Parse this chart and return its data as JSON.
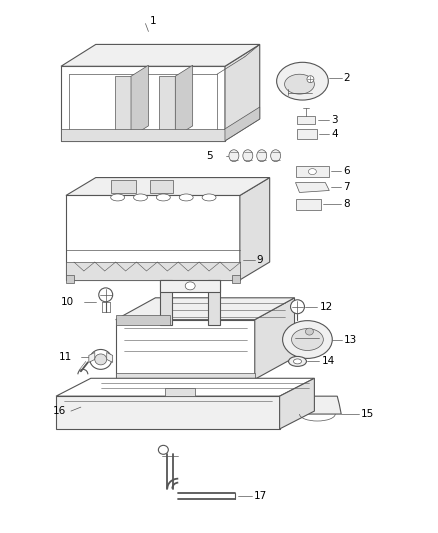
{
  "background_color": "#ffffff",
  "line_color": "#555555",
  "label_color": "#000000",
  "figure_width": 4.38,
  "figure_height": 5.33,
  "dpi": 100
}
